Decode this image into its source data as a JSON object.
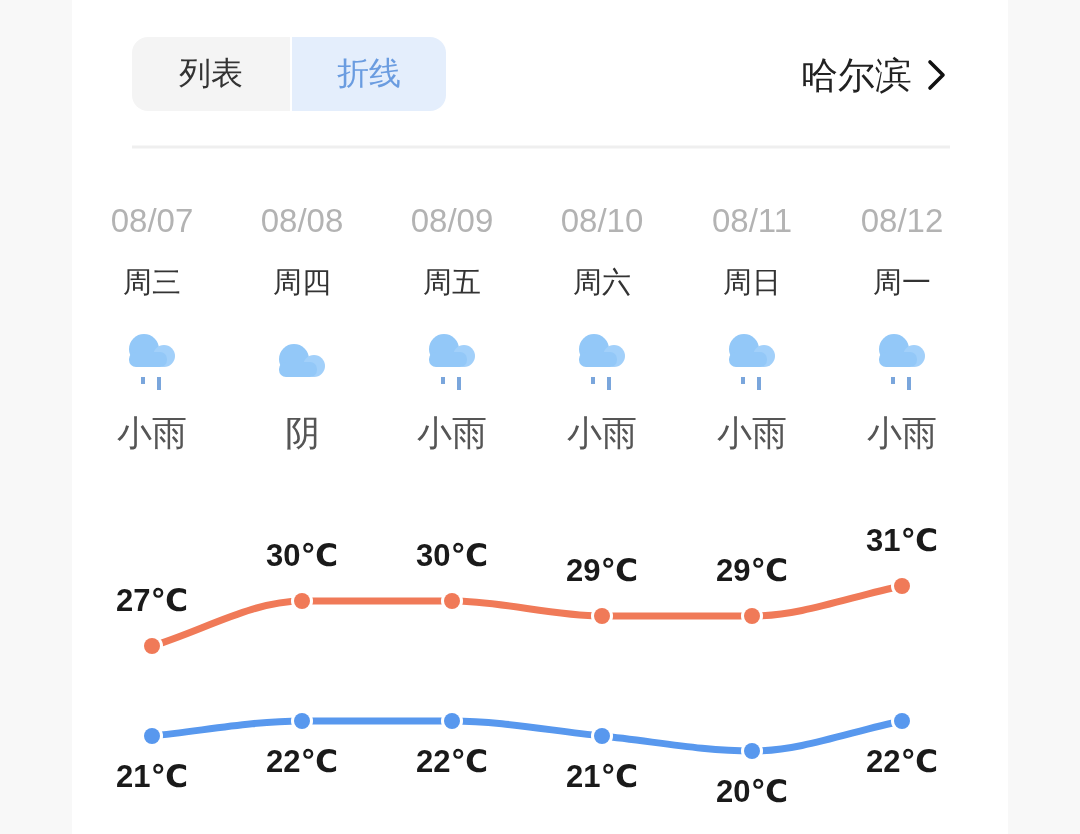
{
  "chart_data": {
    "type": "line",
    "title": "哈尔滨",
    "annotations": [
      "列表",
      "折线",
      "周三",
      "周四",
      "周五",
      "周六",
      "周日",
      "周一",
      "小雨",
      "阴",
      "小雨",
      "小雨",
      "小雨",
      "小雨"
    ],
    "categories": [
      "08/07",
      "08/08",
      "08/09",
      "08/10",
      "08/11",
      "08/12"
    ],
    "series": [
      {
        "color": "#f07a58",
        "values": [
          27,
          30,
          30,
          29,
          29,
          31
        ],
        "value_labels": [
          "27℃",
          "30℃",
          "30℃",
          "29℃",
          "29℃",
          "31℃"
        ]
      },
      {
        "color": "#5898ee",
        "values": [
          21,
          22,
          22,
          21,
          20,
          22
        ],
        "value_labels": [
          "21℃",
          "22℃",
          "22℃",
          "21℃",
          "20℃",
          "22℃"
        ]
      }
    ],
    "marker": "circle"
  }
}
